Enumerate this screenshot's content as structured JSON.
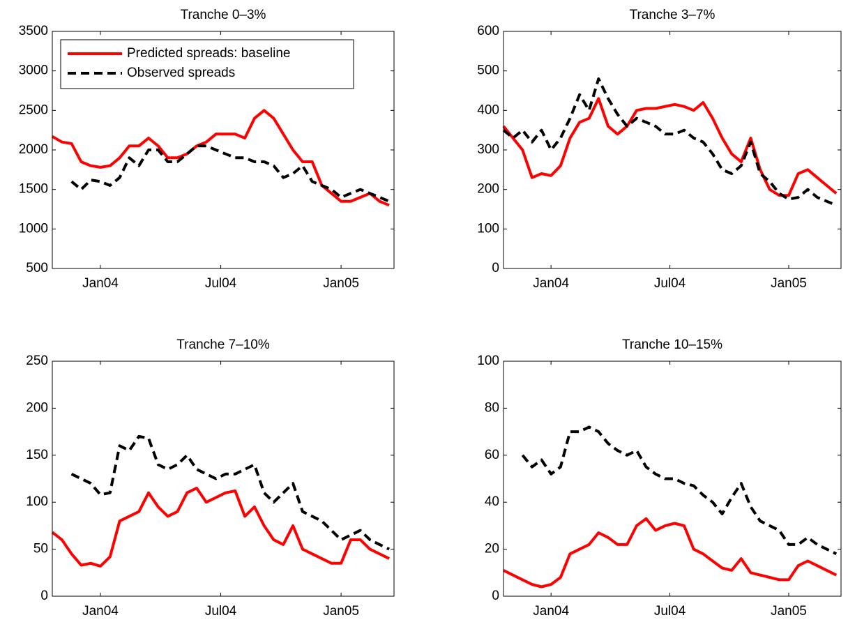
{
  "chart_data": [
    {
      "type": "line",
      "title": "Tranche 0–3%",
      "legend": "upper left",
      "x": [
        2003.8,
        2003.84,
        2003.88,
        2003.92,
        2003.96,
        2004.0,
        2004.04,
        2004.08,
        2004.12,
        2004.16,
        2004.2,
        2004.24,
        2004.28,
        2004.32,
        2004.36,
        2004.4,
        2004.44,
        2004.48,
        2004.52,
        2004.56,
        2004.6,
        2004.64,
        2004.68,
        2004.72,
        2004.76,
        2004.8,
        2004.84,
        2004.88,
        2004.92,
        2004.96,
        2005.0,
        2005.04,
        2005.08,
        2005.12,
        2005.16,
        2005.2
      ],
      "xlim": [
        2003.8,
        2005.22
      ],
      "xticks": [
        {
          "value": 2004,
          "label": "Jan04"
        },
        {
          "value": 2004.5,
          "label": "Jul04"
        },
        {
          "value": 2005,
          "label": "Jan05"
        }
      ],
      "ylim": [
        500,
        3500
      ],
      "yticks": [
        500,
        1000,
        1500,
        2000,
        2500,
        3000,
        3500
      ],
      "series": [
        {
          "name": "Predicted spreads: baseline",
          "color": "#ff0000",
          "line_style": "solid",
          "values": [
            2170,
            2100,
            2080,
            1850,
            1800,
            1780,
            1800,
            1900,
            2050,
            2050,
            2150,
            2050,
            1900,
            1900,
            1950,
            2050,
            2100,
            2200,
            2200,
            2200,
            2150,
            2400,
            2500,
            2400,
            2200,
            2000,
            1850,
            1850,
            1550,
            1450,
            1350,
            1350,
            1400,
            1450,
            1350,
            1300
          ]
        },
        {
          "name": "Observed spreads",
          "color": "#000000",
          "line_style": "dashed",
          "values": [
            null,
            null,
            1600,
            1500,
            1620,
            1600,
            1550,
            1650,
            1900,
            1800,
            2000,
            2000,
            1850,
            1850,
            1950,
            2050,
            2050,
            2000,
            1950,
            1900,
            1900,
            1850,
            1850,
            1800,
            1650,
            1700,
            1800,
            1600,
            1550,
            1500,
            1400,
            1450,
            1500,
            1450,
            1400,
            1350
          ]
        }
      ]
    },
    {
      "type": "line",
      "title": "Tranche 3–7%",
      "x": [
        2003.8,
        2003.84,
        2003.88,
        2003.92,
        2003.96,
        2004.0,
        2004.04,
        2004.08,
        2004.12,
        2004.16,
        2004.2,
        2004.24,
        2004.28,
        2004.32,
        2004.36,
        2004.4,
        2004.44,
        2004.48,
        2004.52,
        2004.56,
        2004.6,
        2004.64,
        2004.68,
        2004.72,
        2004.76,
        2004.8,
        2004.84,
        2004.88,
        2004.92,
        2004.96,
        2005.0,
        2005.04,
        2005.08,
        2005.12,
        2005.16,
        2005.2
      ],
      "xlim": [
        2003.8,
        2005.22
      ],
      "xticks": [
        {
          "value": 2004,
          "label": "Jan04"
        },
        {
          "value": 2004.5,
          "label": "Jul04"
        },
        {
          "value": 2005,
          "label": "Jan05"
        }
      ],
      "ylim": [
        0,
        600
      ],
      "yticks": [
        0,
        100,
        200,
        300,
        400,
        500,
        600
      ],
      "series": [
        {
          "color": "#ff0000",
          "line_style": "solid",
          "values": [
            360,
            330,
            300,
            230,
            240,
            235,
            260,
            330,
            370,
            380,
            430,
            360,
            340,
            360,
            400,
            405,
            405,
            410,
            415,
            410,
            400,
            420,
            380,
            330,
            290,
            270,
            330,
            250,
            200,
            185,
            185,
            240,
            250,
            230,
            210,
            190
          ]
        },
        {
          "color": "#000000",
          "line_style": "dashed",
          "values": [
            350,
            330,
            350,
            320,
            350,
            300,
            330,
            380,
            440,
            400,
            480,
            430,
            390,
            360,
            380,
            370,
            360,
            340,
            340,
            350,
            330,
            320,
            290,
            250,
            240,
            260,
            320,
            240,
            220,
            190,
            175,
            180,
            200,
            180,
            170,
            160
          ]
        }
      ]
    },
    {
      "type": "line",
      "title": "Tranche 7–10%",
      "x": [
        2003.8,
        2003.84,
        2003.88,
        2003.92,
        2003.96,
        2004.0,
        2004.04,
        2004.08,
        2004.12,
        2004.16,
        2004.2,
        2004.24,
        2004.28,
        2004.32,
        2004.36,
        2004.4,
        2004.44,
        2004.48,
        2004.52,
        2004.56,
        2004.6,
        2004.64,
        2004.68,
        2004.72,
        2004.76,
        2004.8,
        2004.84,
        2004.88,
        2004.92,
        2004.96,
        2005.0,
        2005.04,
        2005.08,
        2005.12,
        2005.16,
        2005.2
      ],
      "xlim": [
        2003.8,
        2005.22
      ],
      "xticks": [
        {
          "value": 2004,
          "label": "Jan04"
        },
        {
          "value": 2004.5,
          "label": "Jul04"
        },
        {
          "value": 2005,
          "label": "Jan05"
        }
      ],
      "ylim": [
        0,
        250
      ],
      "yticks": [
        0,
        50,
        100,
        150,
        200,
        250
      ],
      "series": [
        {
          "color": "#ff0000",
          "line_style": "solid",
          "values": [
            68,
            60,
            45,
            33,
            35,
            32,
            42,
            80,
            85,
            90,
            110,
            95,
            85,
            90,
            110,
            115,
            100,
            105,
            110,
            112,
            85,
            95,
            75,
            60,
            55,
            75,
            50,
            45,
            40,
            35,
            35,
            60,
            60,
            50,
            45,
            40
          ]
        },
        {
          "color": "#000000",
          "line_style": "dashed",
          "values": [
            null,
            null,
            130,
            125,
            120,
            108,
            110,
            160,
            155,
            170,
            168,
            140,
            135,
            140,
            150,
            135,
            130,
            125,
            130,
            130,
            135,
            140,
            110,
            100,
            110,
            120,
            90,
            85,
            80,
            70,
            60,
            65,
            70,
            60,
            55,
            50
          ]
        }
      ]
    },
    {
      "type": "line",
      "title": "Tranche 10–15%",
      "x": [
        2003.8,
        2003.84,
        2003.88,
        2003.92,
        2003.96,
        2004.0,
        2004.04,
        2004.08,
        2004.12,
        2004.16,
        2004.2,
        2004.24,
        2004.28,
        2004.32,
        2004.36,
        2004.4,
        2004.44,
        2004.48,
        2004.52,
        2004.56,
        2004.6,
        2004.64,
        2004.68,
        2004.72,
        2004.76,
        2004.8,
        2004.84,
        2004.88,
        2004.92,
        2004.96,
        2005.0,
        2005.04,
        2005.08,
        2005.12,
        2005.16,
        2005.2
      ],
      "xlim": [
        2003.8,
        2005.22
      ],
      "xticks": [
        {
          "value": 2004,
          "label": "Jan04"
        },
        {
          "value": 2004.5,
          "label": "Jul04"
        },
        {
          "value": 2005,
          "label": "Jan05"
        }
      ],
      "ylim": [
        0,
        100
      ],
      "yticks": [
        0,
        20,
        40,
        60,
        80,
        100
      ],
      "series": [
        {
          "color": "#ff0000",
          "line_style": "solid",
          "values": [
            11,
            9,
            7,
            5,
            4,
            5,
            8,
            18,
            20,
            22,
            27,
            25,
            22,
            22,
            30,
            33,
            28,
            30,
            31,
            30,
            20,
            18,
            15,
            12,
            11,
            16,
            10,
            9,
            8,
            7,
            7,
            13,
            15,
            13,
            11,
            9
          ]
        },
        {
          "color": "#000000",
          "line_style": "dashed",
          "values": [
            null,
            null,
            60,
            55,
            58,
            52,
            55,
            70,
            70,
            72,
            70,
            65,
            62,
            60,
            62,
            55,
            52,
            50,
            50,
            48,
            47,
            43,
            40,
            35,
            42,
            48,
            38,
            32,
            30,
            28,
            22,
            22,
            25,
            22,
            20,
            18
          ]
        }
      ]
    }
  ]
}
